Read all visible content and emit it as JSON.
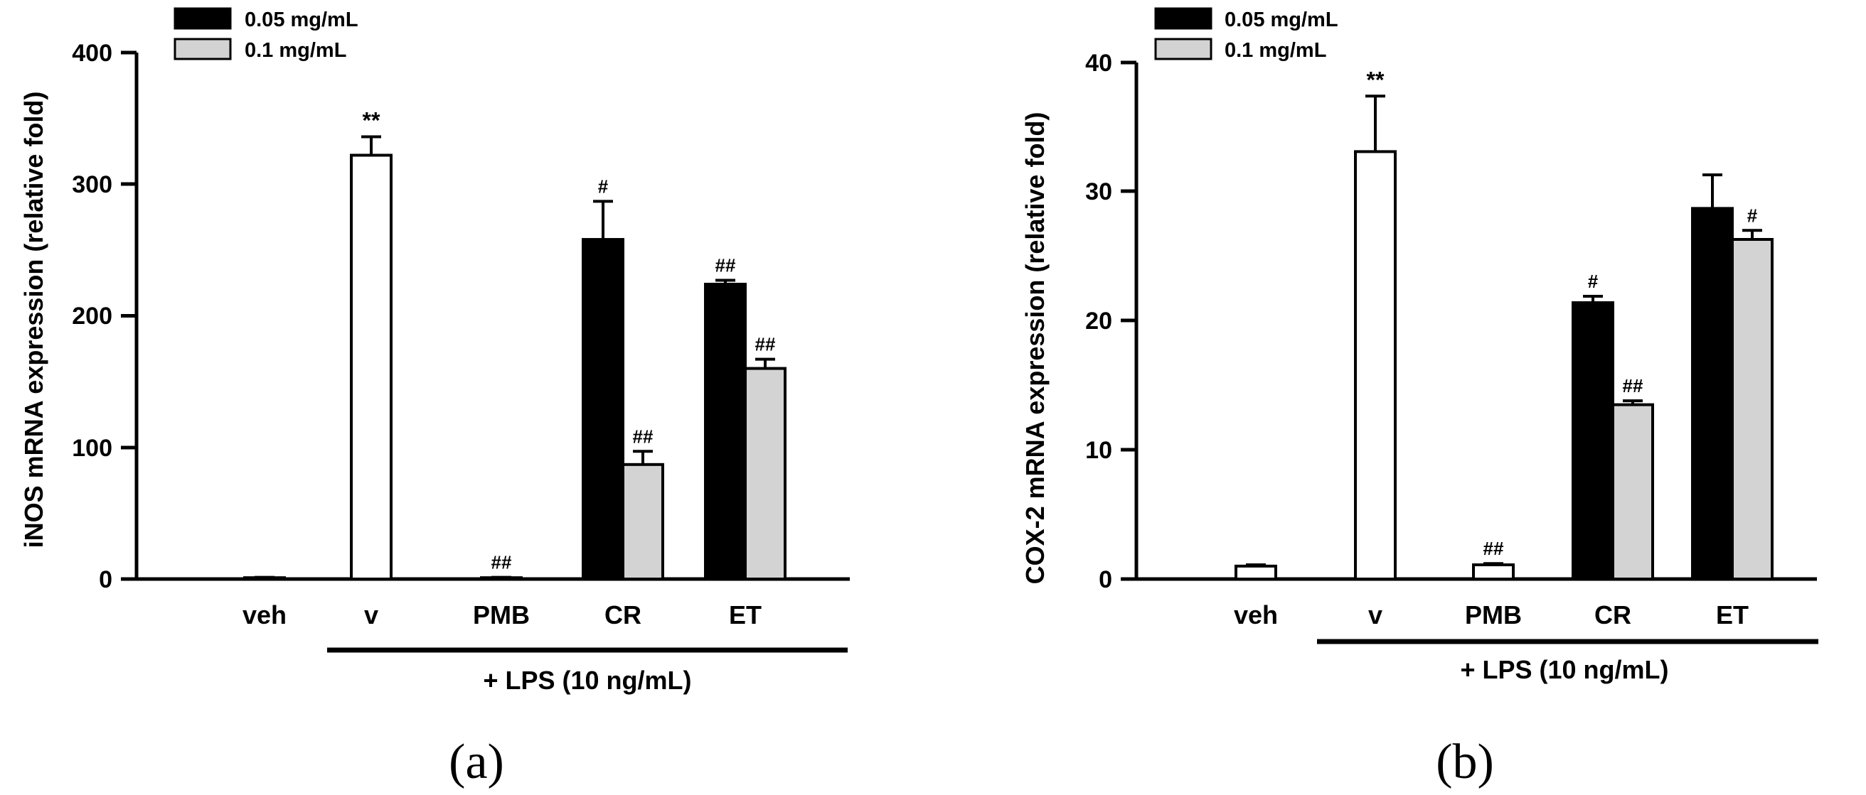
{
  "legend": {
    "series_05": "0.05 mg/mL",
    "series_1": "0.1 mg/mL"
  },
  "group_label": "+ LPS (10 ng/mL)",
  "colors": {
    "series_05": "#000000",
    "series_1": "#d3d3d3",
    "control": "#ffffff",
    "stroke": "#000000"
  },
  "chart_data": [
    {
      "type": "bar",
      "panel_label": "(a)",
      "ylabel": "iNOS mRNA expression (relative fold)",
      "ylim": [
        0,
        400
      ],
      "yticks": [
        "0",
        "100",
        "200",
        "300",
        "400"
      ],
      "categories": [
        "veh",
        "v",
        "PMB",
        "CR",
        "ET"
      ],
      "bars": [
        {
          "category": "veh",
          "series": "control",
          "value": 1,
          "error": 0.3,
          "annotation": ""
        },
        {
          "category": "v",
          "series": "control",
          "value": 322,
          "error": 14,
          "annotation": "**"
        },
        {
          "category": "PMB",
          "series": "control",
          "value": 1,
          "error": 0.3,
          "annotation": "##"
        },
        {
          "category": "CR",
          "series": "0.05 mg/mL",
          "value": 258,
          "error": 29,
          "annotation": "#"
        },
        {
          "category": "CR",
          "series": "0.1 mg/mL",
          "value": 87,
          "error": 10,
          "annotation": "##"
        },
        {
          "category": "ET",
          "series": "0.05 mg/mL",
          "value": 224,
          "error": 3,
          "annotation": "##"
        },
        {
          "category": "ET",
          "series": "0.1 mg/mL",
          "value": 160,
          "error": 7,
          "annotation": "##"
        }
      ]
    },
    {
      "type": "bar",
      "panel_label": "(b)",
      "ylabel": "COX-2 mRNA expression (relative fold)",
      "ylim": [
        0,
        40
      ],
      "yticks": [
        "0",
        "10",
        "20",
        "30",
        "40"
      ],
      "categories": [
        "veh",
        "v",
        "PMB",
        "CR",
        "ET"
      ],
      "bars": [
        {
          "category": "veh",
          "series": "control",
          "value": 1,
          "error": 0.1,
          "annotation": ""
        },
        {
          "category": "v",
          "series": "control",
          "value": 33.1,
          "error": 4.3,
          "annotation": "**"
        },
        {
          "category": "PMB",
          "series": "control",
          "value": 1.1,
          "error": 0.1,
          "annotation": "##"
        },
        {
          "category": "CR",
          "series": "0.05 mg/mL",
          "value": 21.4,
          "error": 0.5,
          "annotation": "#"
        },
        {
          "category": "CR",
          "series": "0.1 mg/mL",
          "value": 13.5,
          "error": 0.3,
          "annotation": "##"
        },
        {
          "category": "ET",
          "series": "0.05 mg/mL",
          "value": 28.7,
          "error": 2.6,
          "annotation": ""
        },
        {
          "category": "ET",
          "series": "0.1 mg/mL",
          "value": 26.3,
          "error": 0.7,
          "annotation": "#"
        }
      ]
    }
  ]
}
